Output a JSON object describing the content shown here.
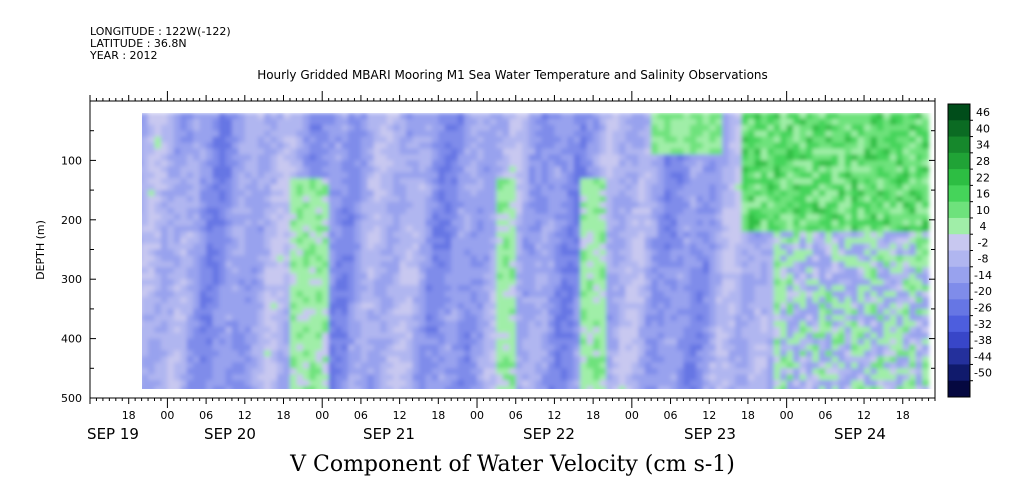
{
  "header": {
    "longitude": "LONGITUDE : 122W(-122)",
    "latitude": "LATITUDE : 36.8N",
    "year": "YEAR : 2012"
  },
  "title": "Hourly Gridded MBARI Mooring M1 Sea Water Temperature and Salinity Observations",
  "variable_title": "V Component of Water Velocity (cm s-1)",
  "chart_data": {
    "type": "heatmap",
    "title": "Hourly Gridded MBARI Mooring M1 Sea Water Temperature and Salinity Observations",
    "variable": "V Component of Water Velocity (cm s-1)",
    "xlabel": "",
    "ylabel": "DEPTH (m)",
    "y_ticks": [
      100,
      200,
      300,
      400,
      500
    ],
    "ylim": [
      20,
      500
    ],
    "y_inverted": true,
    "x_hour_labels": [
      "18",
      "00",
      "06",
      "12",
      "18",
      "00",
      "06",
      "12",
      "18",
      "00",
      "06",
      "12",
      "18",
      "00",
      "06",
      "12",
      "18",
      "00",
      "06",
      "12",
      "18"
    ],
    "x_date_labels": [
      "SEP 19",
      "SEP 20",
      "SEP 21",
      "SEP 22",
      "SEP 23",
      "SEP 24"
    ],
    "x_range_hours_from_sep19_00": [
      12,
      143
    ],
    "data_hours_range": [
      19,
      142
    ],
    "data_depth_range": [
      20,
      485
    ],
    "colorbar_levels": [
      46,
      40,
      34,
      28,
      22,
      16,
      10,
      4,
      -2,
      -8,
      -14,
      -20,
      -26,
      -32,
      -38,
      -44,
      -50
    ],
    "colorbar_labels": [
      "46",
      "40",
      "34",
      "28",
      "22",
      "16",
      "10",
      "4",
      "-2",
      "-8",
      "-14",
      "-20",
      "-26",
      "-32",
      "-38",
      "-44",
      "-50"
    ],
    "colorbar_colors": [
      "#004d1a",
      "#0b6b23",
      "#16882c",
      "#20a336",
      "#2dbe43",
      "#45d45a",
      "#6ee27c",
      "#a0eea8",
      "#c8c8f0",
      "#b0b6f0",
      "#98a2ee",
      "#7f8cea",
      "#6676e4",
      "#4d5ede",
      "#3846c8",
      "#24309c",
      "#101a6c",
      "#050840"
    ],
    "dominant_pattern": "mostly weak negative (light blue/lavender, -2 to -20) with vertical green streaks of weak positive flow (4 to 16); stronger positive (16 to 28) in upper 200 m on SEP 24"
  }
}
